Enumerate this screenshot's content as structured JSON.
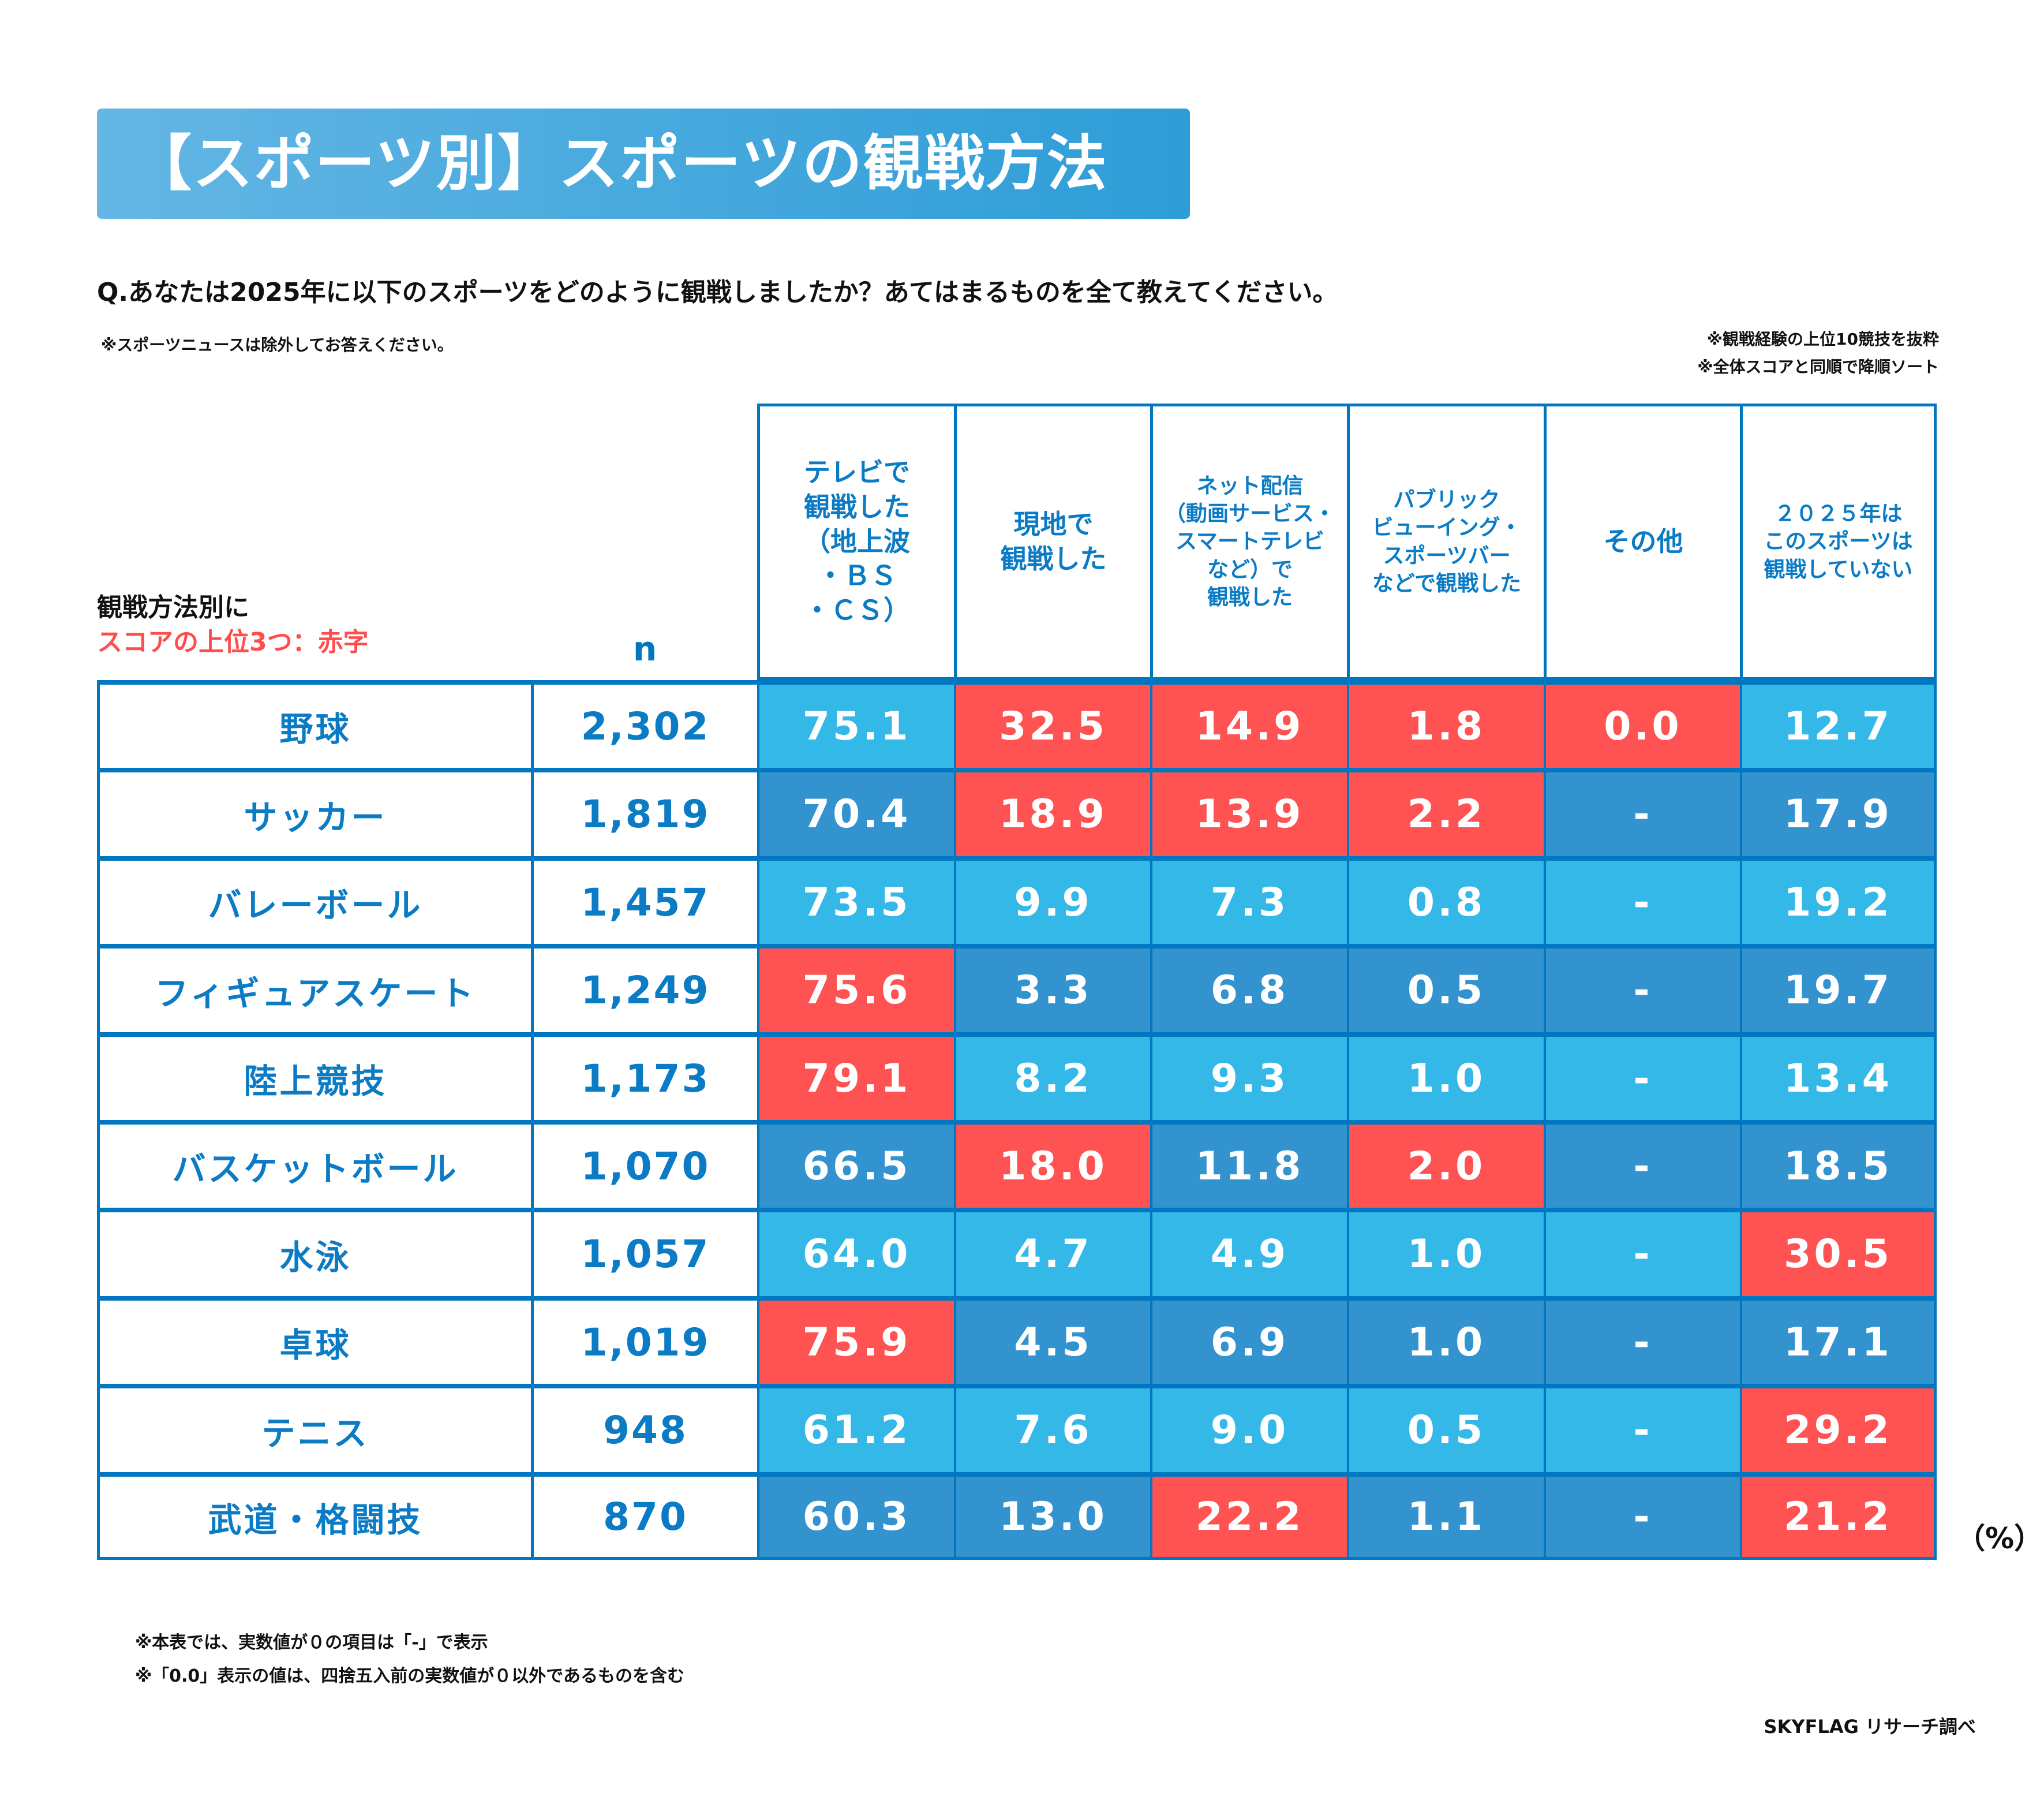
{
  "title": "【スポーツ別】スポーツの観戦方法",
  "question": "Q.あなたは2025年に以下のスポーツをどのように観戦しましたか？あてはまるものを全て教えてください。",
  "note_left": "※スポーツニュースは除外してお答えください。",
  "notes_right": [
    "※観戦経験の上位10競技を抜粋",
    "※全体スコアと同順で降順ソート"
  ],
  "legend": {
    "line1": "観戦方法別に",
    "line2": "スコアの上位3つ：赤字"
  },
  "n_header": "n",
  "columns": [
    "テレビで\n観戦した\n（地上波\n・ＢＳ\n・ＣＳ）",
    "現地で\n観戦した",
    "ネット配信\n（動画サービス・\nスマートテレビ\nなど）で\n観戦した",
    "パブリック\nビューイング・\nスポーツバー\nなどで観戦した",
    "その他",
    "２０２５年は\nこのスポーツは\n観戦していない"
  ],
  "colors": {
    "light": "#33b8e8",
    "dark": "#3393cf",
    "top3": "#ff5252",
    "border": "#0077c0",
    "text_blue": "#0a7bc4"
  },
  "rows": [
    {
      "sport": "野球",
      "n": "2,302",
      "values": [
        "75.1",
        "32.5",
        "14.9",
        "1.8",
        "0.0",
        "12.7"
      ],
      "top3": [
        false,
        true,
        true,
        true,
        true,
        false
      ]
    },
    {
      "sport": "サッカー",
      "n": "1,819",
      "values": [
        "70.4",
        "18.9",
        "13.9",
        "2.2",
        "-",
        "17.9"
      ],
      "top3": [
        false,
        true,
        true,
        true,
        false,
        false
      ]
    },
    {
      "sport": "バレーボール",
      "n": "1,457",
      "values": [
        "73.5",
        "9.9",
        "7.3",
        "0.8",
        "-",
        "19.2"
      ],
      "top3": [
        false,
        false,
        false,
        false,
        false,
        false
      ]
    },
    {
      "sport": "フィギュアスケート",
      "n": "1,249",
      "values": [
        "75.6",
        "3.3",
        "6.8",
        "0.5",
        "-",
        "19.7"
      ],
      "top3": [
        true,
        false,
        false,
        false,
        false,
        false
      ]
    },
    {
      "sport": "陸上競技",
      "n": "1,173",
      "values": [
        "79.1",
        "8.2",
        "9.3",
        "1.0",
        "-",
        "13.4"
      ],
      "top3": [
        true,
        false,
        false,
        false,
        false,
        false
      ]
    },
    {
      "sport": "バスケットボール",
      "n": "1,070",
      "values": [
        "66.5",
        "18.0",
        "11.8",
        "2.0",
        "-",
        "18.5"
      ],
      "top3": [
        false,
        true,
        false,
        true,
        false,
        false
      ]
    },
    {
      "sport": "水泳",
      "n": "1,057",
      "values": [
        "64.0",
        "4.7",
        "4.9",
        "1.0",
        "-",
        "30.5"
      ],
      "top3": [
        false,
        false,
        false,
        false,
        false,
        true
      ]
    },
    {
      "sport": "卓球",
      "n": "1,019",
      "values": [
        "75.9",
        "4.5",
        "6.9",
        "1.0",
        "-",
        "17.1"
      ],
      "top3": [
        true,
        false,
        false,
        false,
        false,
        false
      ]
    },
    {
      "sport": "テニス",
      "n": "948",
      "values": [
        "61.2",
        "7.6",
        "9.0",
        "0.5",
        "-",
        "29.2"
      ],
      "top3": [
        false,
        false,
        false,
        false,
        false,
        true
      ]
    },
    {
      "sport": "武道・格闘技",
      "n": "870",
      "values": [
        "60.3",
        "13.0",
        "22.2",
        "1.1",
        "-",
        "21.2"
      ],
      "top3": [
        false,
        false,
        true,
        false,
        false,
        true
      ]
    }
  ],
  "unit": "（%）",
  "footnotes": [
    "※本表では、実数値が０の項目は「-」で表示",
    "※「0.0」表示の値は、四捨五入前の実数値が０以外であるものを含む"
  ],
  "credit": "SKYFLAG リサーチ調べ"
}
